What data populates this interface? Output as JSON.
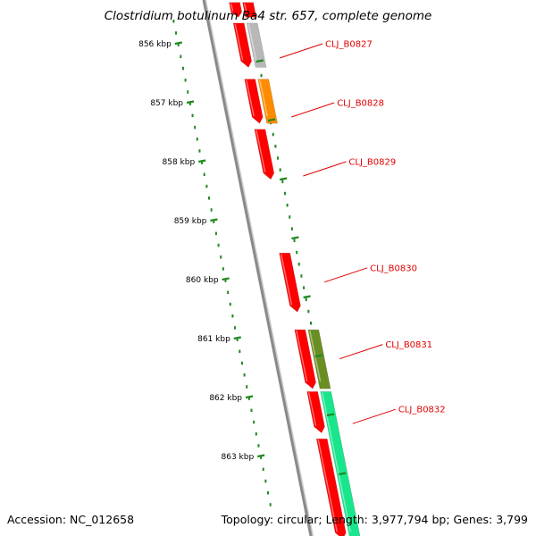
{
  "title": "Clostridium botulinum Ba4 str. 657, complete genome",
  "accession": "Accession: NC_012658",
  "summary": "Topology: circular; Length: 3,977,794 bp; Genes: 3,799",
  "colors": {
    "backbone": "#8a8a8a",
    "tick": "#1f8a1f",
    "label": "#e00000",
    "gene_red": "#ff0000",
    "gene_grey": "#b8b8b8",
    "gene_orange": "#ff8c00",
    "gene_olive": "#6b8e23",
    "gene_aqua": "#19e68c"
  },
  "kbp_ticks": [
    {
      "value": 856,
      "text": "856 kbp"
    },
    {
      "value": 857,
      "text": "857 kbp"
    },
    {
      "value": 858,
      "text": "858 kbp"
    },
    {
      "value": 859,
      "text": "859 kbp"
    },
    {
      "value": 860,
      "text": "860 kbp"
    },
    {
      "value": 861,
      "text": "861 kbp"
    },
    {
      "value": 862,
      "text": "862 kbp"
    },
    {
      "value": 863,
      "text": "863 kbp"
    }
  ],
  "gene_labels": [
    {
      "text": "CLJ_B0827",
      "kbp": 856.0
    },
    {
      "text": "CLJ_B0828",
      "kbp": 857.0
    },
    {
      "text": "CLJ_B0829",
      "kbp": 858.0
    },
    {
      "text": "CLJ_B0830",
      "kbp": 859.8
    },
    {
      "text": "CLJ_B0831",
      "kbp": 861.1
    },
    {
      "text": "CLJ_B0832",
      "kbp": 862.2
    }
  ],
  "features": [
    {
      "track": "cds",
      "start": 855.3,
      "end": 855.55,
      "color": "gene_red"
    },
    {
      "track": "cds",
      "start": 855.65,
      "end": 856.4,
      "color": "gene_red"
    },
    {
      "track": "cds",
      "start": 856.6,
      "end": 857.35,
      "color": "gene_red"
    },
    {
      "track": "cds",
      "start": 857.45,
      "end": 858.3,
      "color": "gene_red"
    },
    {
      "track": "cds",
      "start": 859.55,
      "end": 860.55,
      "color": "gene_red"
    },
    {
      "track": "cds",
      "start": 860.85,
      "end": 861.85,
      "color": "gene_red"
    },
    {
      "track": "cds",
      "start": 861.9,
      "end": 862.6,
      "color": "gene_red"
    },
    {
      "track": "cds",
      "start": 862.7,
      "end": 864.4,
      "color": "gene_red"
    },
    {
      "track": "gene",
      "start": 855.3,
      "end": 855.55,
      "color": "gene_red"
    },
    {
      "track": "gene",
      "start": 855.65,
      "end": 856.4,
      "color": "gene_grey"
    },
    {
      "track": "gene",
      "start": 856.6,
      "end": 857.35,
      "color": "gene_orange"
    },
    {
      "track": "gene",
      "start": 860.85,
      "end": 861.85,
      "color": "gene_olive"
    },
    {
      "track": "gene",
      "start": 861.9,
      "end": 864.4,
      "color": "gene_aqua"
    }
  ]
}
